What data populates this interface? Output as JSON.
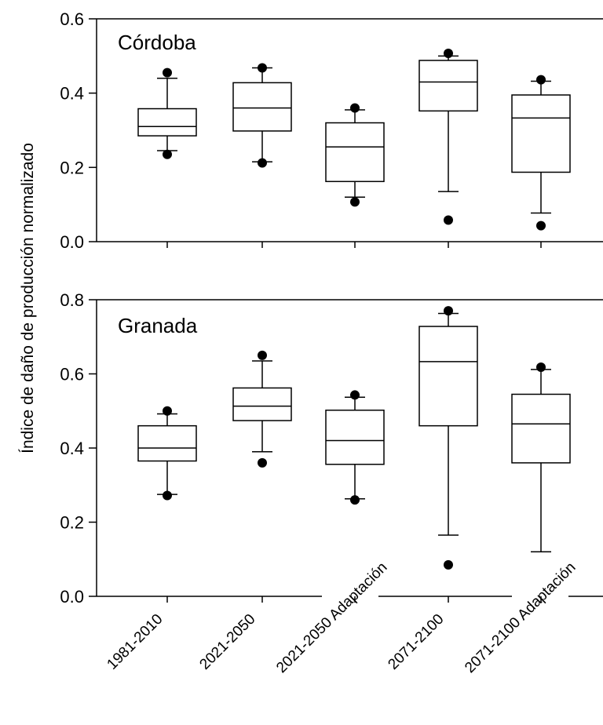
{
  "chart_data": {
    "type": "boxplot",
    "ylabel": "Índice de daño de producción normalizado",
    "categories": [
      "1981-2010",
      "2021-2050",
      "2021-2050 Adaptación",
      "2071-2100",
      "2071-2100 Adaptación"
    ],
    "panels": [
      {
        "title": "Córdoba",
        "ylim": [
          0,
          0.6
        ],
        "yticks": [
          "0.0",
          "0.2",
          "0.4",
          "0.6"
        ],
        "boxes": [
          {
            "min": 0.245,
            "q1": 0.285,
            "median": 0.31,
            "q3": 0.358,
            "max": 0.44,
            "outliers": [
              0.235,
              0.455
            ]
          },
          {
            "min": 0.215,
            "q1": 0.298,
            "median": 0.36,
            "q3": 0.428,
            "max": 0.468,
            "outliers": [
              0.212,
              0.468
            ]
          },
          {
            "min": 0.12,
            "q1": 0.162,
            "median": 0.255,
            "q3": 0.32,
            "max": 0.355,
            "outliers": [
              0.107,
              0.36
            ]
          },
          {
            "min": 0.135,
            "q1": 0.352,
            "median": 0.43,
            "q3": 0.488,
            "max": 0.5,
            "outliers": [
              0.058,
              0.507
            ]
          },
          {
            "min": 0.077,
            "q1": 0.187,
            "median": 0.333,
            "q3": 0.395,
            "max": 0.432,
            "outliers": [
              0.043,
              0.436
            ]
          }
        ]
      },
      {
        "title": "Granada",
        "ylim": [
          0,
          0.8
        ],
        "yticks": [
          "0.0",
          "0.2",
          "0.4",
          "0.6",
          "0.8"
        ],
        "boxes": [
          {
            "min": 0.275,
            "q1": 0.365,
            "median": 0.4,
            "q3": 0.46,
            "max": 0.492,
            "outliers": [
              0.272,
              0.5
            ]
          },
          {
            "min": 0.39,
            "q1": 0.474,
            "median": 0.513,
            "q3": 0.562,
            "max": 0.635,
            "outliers": [
              0.36,
              0.65
            ]
          },
          {
            "min": 0.263,
            "q1": 0.356,
            "median": 0.42,
            "q3": 0.502,
            "max": 0.537,
            "outliers": [
              0.26,
              0.543
            ]
          },
          {
            "min": 0.165,
            "q1": 0.46,
            "median": 0.633,
            "q3": 0.728,
            "max": 0.763,
            "outliers": [
              0.085,
              0.77
            ]
          },
          {
            "min": 0.12,
            "q1": 0.36,
            "median": 0.465,
            "q3": 0.545,
            "max": 0.612,
            "outliers": [
              0.618
            ]
          }
        ]
      }
    ]
  }
}
